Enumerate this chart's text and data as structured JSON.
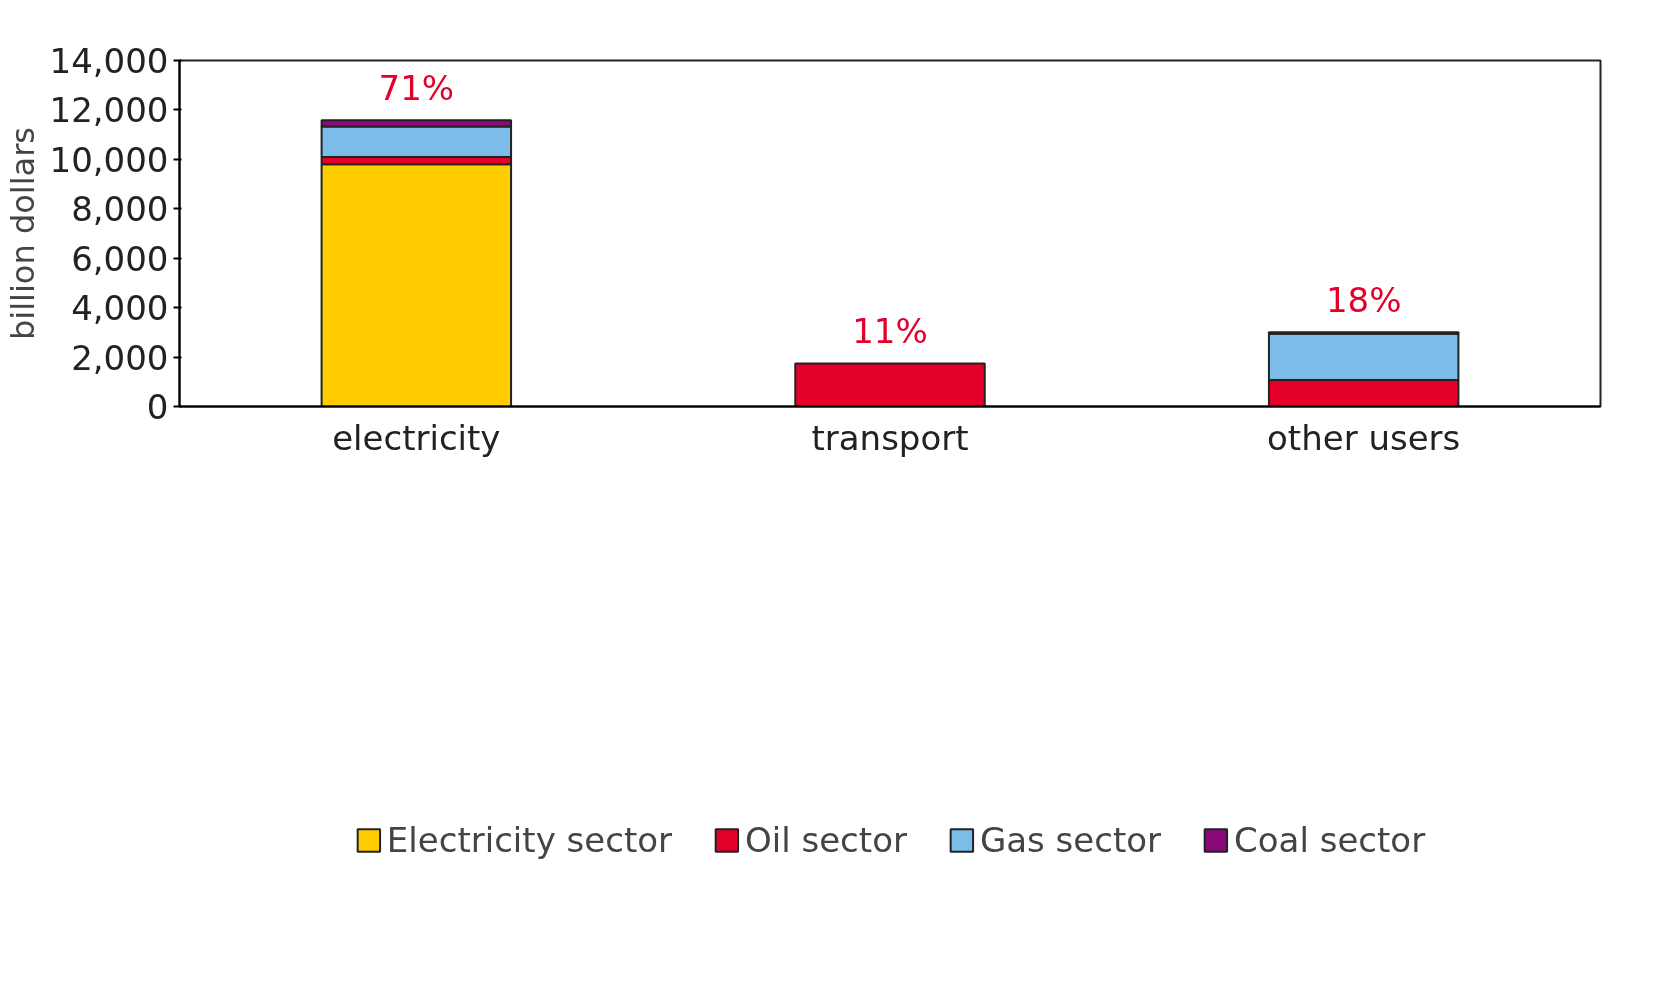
{
  "chart_data": {
    "type": "bar",
    "stacked": true,
    "ylabel": "billion dollars",
    "categories": [
      "electricity",
      "transport",
      "other users"
    ],
    "series": [
      {
        "name": "Electricity sector",
        "color": "#ffcc00",
        "values": [
          9800,
          0,
          0
        ]
      },
      {
        "name": "Oil sector",
        "color": "#e4002b",
        "values": [
          300,
          1740,
          1070
        ]
      },
      {
        "name": "Gas sector",
        "color": "#7bbde8",
        "values": [
          1230,
          0,
          1870
        ]
      },
      {
        "name": "Coal sector",
        "color": "#8b0a7a",
        "values": [
          250,
          0,
          60
        ]
      }
    ],
    "ylim": [
      0,
      14000
    ],
    "yticks": [
      {
        "value": 0,
        "label": "0"
      },
      {
        "value": 2000,
        "label": "2,000"
      },
      {
        "value": 4000,
        "label": "4,000"
      },
      {
        "value": 6000,
        "label": "6,000"
      },
      {
        "value": 8000,
        "label": "8,000"
      },
      {
        "value": 10000,
        "label": "10,000"
      },
      {
        "value": 12000,
        "label": "12,000"
      },
      {
        "value": 14000,
        "label": "14,000"
      }
    ],
    "grid": false,
    "legend": "bottom",
    "annotations": [
      {
        "text": "71%",
        "x": "electricity",
        "y": 11580
      },
      {
        "text": "11%",
        "x": "transport",
        "y": 1740
      },
      {
        "text": "18%",
        "x": "other users",
        "y": 3000
      }
    ]
  }
}
